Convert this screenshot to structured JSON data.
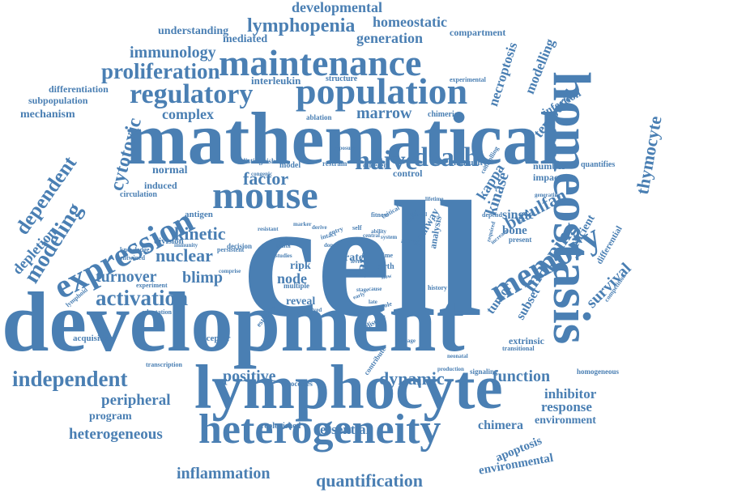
{
  "cloud": {
    "color": "#4a7fb3",
    "words": [
      "cell",
      "development",
      "mathematical",
      "homeostasis",
      "lymphocyte",
      "heterogeneity",
      "maintenance",
      "population",
      "mouse",
      "expression",
      "memory",
      "death",
      "naive",
      "regulatory",
      "proliferation",
      "independent",
      "activation",
      "lymphopenia",
      "developmental",
      "homeostatic",
      "generation",
      "immunology",
      "understanding",
      "mediated",
      "compartment",
      "necroptosis",
      "modelling",
      "temporal",
      "thymocyte",
      "cytotoxic",
      "modeling",
      "dependent",
      "depletion",
      "factor",
      "busulfan",
      "kinase",
      "kappa",
      "mapping",
      "kinetic",
      "nuclear",
      "turnover",
      "blimp",
      "survival",
      "tumor",
      "subset",
      "function",
      "dynamic",
      "positive",
      "inhibitor",
      "response",
      "environment",
      "chimera",
      "apoptosis",
      "environmental",
      "quantification",
      "inflammation",
      "essential",
      "replenished",
      "heterogeneous",
      "program",
      "peripheral",
      "acquisition",
      "receptor",
      "transcription",
      "complex",
      "mechanism",
      "subpopulation",
      "differentiation",
      "interleukin",
      "structure",
      "experimental",
      "marrow",
      "chimeric",
      "ablation",
      "infection",
      "normal",
      "induced",
      "circulation",
      "antigen",
      "division",
      "knowledge",
      "entwined",
      "lymphoid",
      "experiment",
      "adaptation",
      "immunity",
      "decision",
      "node",
      "ripk",
      "reveal",
      "multiple",
      "studies",
      "health",
      "rate",
      "birth",
      "fate",
      "pathway",
      "analysis",
      "history",
      "single",
      "bone",
      "present",
      "impact",
      "number",
      "quantifies",
      "maturity",
      "control",
      "different",
      "restrain",
      "distinguish",
      "model",
      "congenic",
      "exposure",
      "critical",
      "deficient",
      "differential",
      "competition",
      "extrinsic",
      "transitional",
      "signaling",
      "homogeneous",
      "neonatal",
      "production",
      "contribute",
      "disease",
      "lineage",
      "estimate",
      "involved",
      "processes",
      "level",
      "central",
      "ability",
      "system",
      "natural",
      "activity",
      "lifetime",
      "depend",
      "increase",
      "required",
      "generating",
      "controlling",
      "persistent",
      "respond",
      "resistant",
      "marker",
      "derive",
      "intact",
      "entry",
      "donor",
      "self",
      "time",
      "slow",
      "comprise",
      "fitness",
      "steady",
      "stage",
      "late",
      "early",
      "cause",
      "role"
    ]
  }
}
